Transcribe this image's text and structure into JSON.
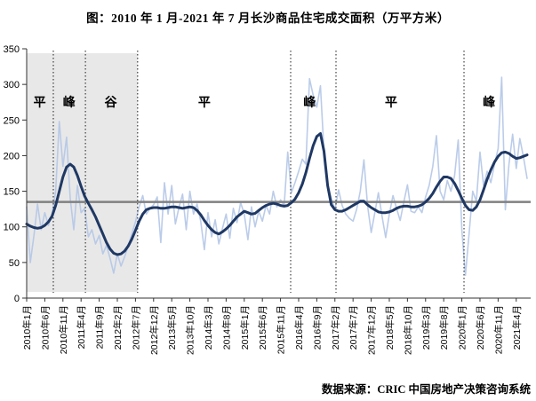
{
  "page": {
    "title": "图：2010 年 1 月-2021 年 7 月长沙商品住宅成交面积（万平方米）",
    "source": "数据来源：CRIC 中国房地产决策咨询系统",
    "background": "#ffffff"
  },
  "colors": {
    "monthly_line": "#b4c7e7",
    "trend_line": "#1f3864",
    "baseline": "#808080",
    "shaded_region": "#e8e8e8",
    "boundary_dotted": "#1a1a1a",
    "axis": "#333333",
    "text": "#000000"
  },
  "chart_data": {
    "type": "line",
    "title": "图：2010年1月-2021年7月长沙商品住宅成交面积（万平方米）",
    "xlabel": "",
    "ylabel": "",
    "ylim": [
      0,
      350
    ],
    "y_ticks": [
      0,
      50,
      100,
      150,
      200,
      250,
      300,
      350
    ],
    "grid": false,
    "legend": "none",
    "baseline_value": 135,
    "x_start": "2010-01",
    "x_end": "2021-07",
    "x_point_count": 139,
    "x_tick_every_months": 5,
    "x_tick_labels": [
      "2010年1月",
      "2010年6月",
      "2010年11月",
      "2011年4月",
      "2011年9月",
      "2012年2月",
      "2012年7月",
      "2012年12月",
      "2013年5月",
      "2013年10月",
      "2014年3月",
      "2014年8月",
      "2015年1月",
      "2015年6月",
      "2015年11月",
      "2016年4月",
      "2016年9月",
      "2017年2月",
      "2017年7月",
      "2017年12月",
      "2018年5月",
      "2018年10月",
      "2019年3月",
      "2019年8月",
      "2020年1月",
      "2020年6月",
      "2020年11月",
      "2021年4月"
    ],
    "series": [
      {
        "id": "monthly",
        "color": "#b4c7e7",
        "width": 1.6,
        "values": [
          128,
          50,
          88,
          132,
          96,
          120,
          102,
          118,
          150,
          248,
          185,
          226,
          140,
          96,
          158,
          120,
          126,
          86,
          96,
          76,
          88,
          62,
          74,
          56,
          35,
          62,
          45,
          58,
          73,
          90,
          107,
          128,
          144,
          118,
          126,
          131,
          142,
          78,
          162,
          118,
          158,
          104,
          127,
          146,
          96,
          150,
          118,
          132,
          108,
          68,
          120,
          86,
          110,
          76,
          98,
          118,
          84,
          126,
          106,
          134,
          118,
          82,
          128,
          100,
          122,
          108,
          130,
          118,
          150,
          128,
          138,
          130,
          205,
          148,
          162,
          178,
          195,
          188,
          308,
          285,
          268,
          298,
          205,
          160,
          140,
          124,
          152,
          130,
          118,
          112,
          108,
          125,
          150,
          194,
          130,
          92,
          120,
          148,
          115,
          85,
          118,
          144,
          126,
          109,
          135,
          159,
          122,
          120,
          128,
          120,
          142,
          158,
          185,
          228,
          150,
          138,
          165,
          150,
          172,
          222,
          95,
          32,
          90,
          150,
          136,
          205,
          158,
          178,
          162,
          188,
          210,
          310,
          124,
          188,
          230,
          182,
          224,
          198,
          168
        ]
      },
      {
        "id": "trend",
        "color": "#1f3864",
        "width": 3,
        "values": [
          104,
          101,
          99,
          98,
          99,
          102,
          107,
          115,
          130,
          150,
          170,
          184,
          188,
          184,
          172,
          157,
          143,
          133,
          124,
          114,
          102,
          90,
          78,
          69,
          63,
          61,
          62,
          66,
          73,
          83,
          95,
          108,
          118,
          124,
          126,
          127,
          127,
          126,
          126,
          127,
          128,
          128,
          127,
          126,
          127,
          128,
          127,
          123,
          117,
          109,
          102,
          96,
          92,
          90,
          93,
          97,
          102,
          108,
          114,
          118,
          122,
          120,
          118,
          119,
          123,
          127,
          130,
          132,
          133,
          132,
          130,
          129,
          130,
          134,
          139,
          148,
          160,
          176,
          196,
          214,
          227,
          231,
          206,
          158,
          131,
          124,
          122,
          122,
          124,
          127,
          130,
          133,
          136,
          136,
          131,
          127,
          124,
          121,
          120,
          120,
          121,
          123,
          126,
          128,
          129,
          129,
          128,
          128,
          129,
          131,
          135,
          140,
          147,
          156,
          164,
          170,
          170,
          168,
          161,
          151,
          140,
          130,
          124,
          123,
          128,
          138,
          152,
          167,
          180,
          191,
          199,
          204,
          205,
          203,
          199,
          196,
          197,
          199,
          201
        ]
      }
    ],
    "phases": [
      {
        "label": "平",
        "x_month": 3.6
      },
      {
        "label": "峰",
        "x_month": 11.7
      },
      {
        "label": "谷",
        "x_month": 23.2
      },
      {
        "label": "平",
        "x_month": 49.0
      },
      {
        "label": "峰",
        "x_month": 78.0
      },
      {
        "label": "平",
        "x_month": 100.5
      },
      {
        "label": "峰",
        "x_month": 127.5
      }
    ],
    "phase_boundaries_month": [
      7.35,
      16.2,
      30.6,
      72.8,
      85.3,
      120.6
    ],
    "shaded_region": {
      "from_month": 0,
      "to_month": 30.6,
      "color": "#e8e8e8"
    }
  }
}
